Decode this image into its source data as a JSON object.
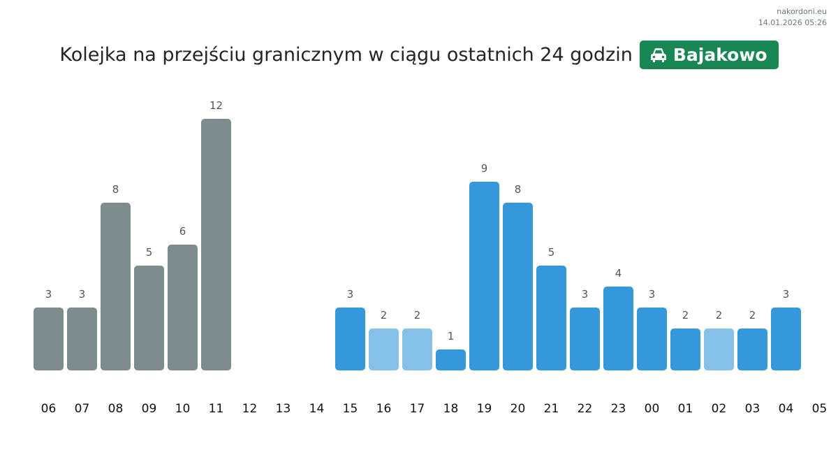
{
  "source": {
    "site": "nakordoni.eu",
    "timestamp": "14.01.2026 05:26"
  },
  "header": {
    "title": "Kolejka na przejściu granicznym w ciągu ostatnich 24 godzin",
    "crossing": "Bajakowo",
    "crossing_icon": "car-icon"
  },
  "colors": {
    "past": "#7f8c8d",
    "current": "#3498db",
    "light": "#85c1e9",
    "badge": "#198754"
  },
  "chart_data": {
    "type": "bar",
    "title": "Kolejka na przejściu granicznym w ciągu ostatnich 24 godzin",
    "xlabel": "",
    "ylabel": "",
    "ylim": [
      0,
      12
    ],
    "categories": [
      "06",
      "07",
      "08",
      "09",
      "10",
      "11",
      "12",
      "13",
      "14",
      "15",
      "16",
      "17",
      "18",
      "19",
      "20",
      "21",
      "22",
      "23",
      "00",
      "01",
      "02",
      "03",
      "04",
      "05"
    ],
    "values": [
      3,
      3,
      8,
      5,
      6,
      12,
      null,
      null,
      null,
      3,
      2,
      2,
      1,
      9,
      8,
      5,
      3,
      4,
      3,
      2,
      2,
      2,
      3,
      null
    ],
    "bar_style": [
      "past",
      "past",
      "past",
      "past",
      "past",
      "past",
      null,
      null,
      null,
      "current",
      "light",
      "light",
      "current",
      "current",
      "current",
      "current",
      "current",
      "current",
      "current",
      "current",
      "light",
      "current",
      "current",
      null
    ]
  }
}
